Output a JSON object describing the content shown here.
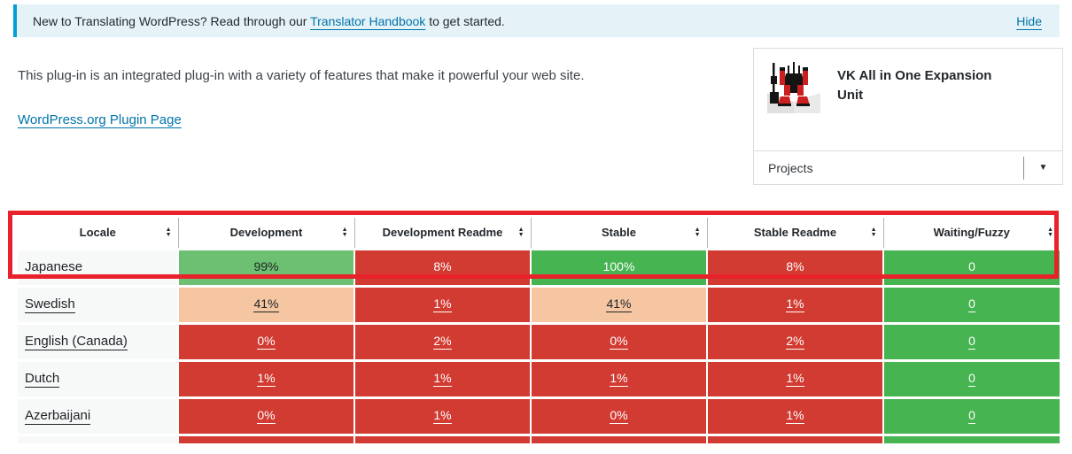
{
  "notice": {
    "text_before": "New to Translating WordPress? Read through our ",
    "handbook_link": "Translator Handbook",
    "text_after": " to get started.",
    "hide_label": "Hide",
    "bg_color": "#e5f3f9",
    "accent_color": "#00a0d2"
  },
  "intro": {
    "description": "This plug-in is an integrated plug-in with a variety of features that make it powerful your web site.",
    "plugin_page_link": "WordPress.org Plugin Page"
  },
  "project_card": {
    "title": "VK All in One Expansion Unit",
    "projects_label": "Projects",
    "logo_name": "vk-mecha-robot-logo"
  },
  "icons": {
    "sort_up": "▲",
    "sort_down": "▼",
    "caret_down": "▼"
  },
  "colors": {
    "link": "#0073aa",
    "annotation_red": "#e8222a",
    "cell_red": "#d13b32",
    "cell_green_full": "#46b450",
    "cell_green_high": "#6dc072",
    "cell_peach": "#f6c6a3",
    "locale_bg": "#f7f8f8",
    "dark_text": "#1d2327",
    "white_text": "#ffffff"
  },
  "table": {
    "columns": [
      "Locale",
      "Development",
      "Development Readme",
      "Stable",
      "Stable Readme",
      "Waiting/Fuzzy"
    ],
    "locale_bg": "#f7f8f8",
    "rows": [
      {
        "locale": "Japanese",
        "cells": [
          {
            "text": "99%",
            "bg": "#6dc072",
            "fg": "#1d2327"
          },
          {
            "text": "8%",
            "bg": "#d13b32",
            "fg": "#ffffff"
          },
          {
            "text": "100%",
            "bg": "#46b450",
            "fg": "#ffffff"
          },
          {
            "text": "8%",
            "bg": "#d13b32",
            "fg": "#ffffff"
          },
          {
            "text": "0",
            "bg": "#46b450",
            "fg": "#ffffff"
          }
        ]
      },
      {
        "locale": "Swedish",
        "cells": [
          {
            "text": "41%",
            "bg": "#f6c6a3",
            "fg": "#1d2327"
          },
          {
            "text": "1%",
            "bg": "#d13b32",
            "fg": "#ffffff"
          },
          {
            "text": "41%",
            "bg": "#f6c6a3",
            "fg": "#1d2327"
          },
          {
            "text": "1%",
            "bg": "#d13b32",
            "fg": "#ffffff"
          },
          {
            "text": "0",
            "bg": "#46b450",
            "fg": "#ffffff"
          }
        ]
      },
      {
        "locale": "English (Canada)",
        "cells": [
          {
            "text": "0%",
            "bg": "#d13b32",
            "fg": "#ffffff"
          },
          {
            "text": "2%",
            "bg": "#d13b32",
            "fg": "#ffffff"
          },
          {
            "text": "0%",
            "bg": "#d13b32",
            "fg": "#ffffff"
          },
          {
            "text": "2%",
            "bg": "#d13b32",
            "fg": "#ffffff"
          },
          {
            "text": "0",
            "bg": "#46b450",
            "fg": "#ffffff"
          }
        ]
      },
      {
        "locale": "Dutch",
        "cells": [
          {
            "text": "1%",
            "bg": "#d13b32",
            "fg": "#ffffff"
          },
          {
            "text": "1%",
            "bg": "#d13b32",
            "fg": "#ffffff"
          },
          {
            "text": "1%",
            "bg": "#d13b32",
            "fg": "#ffffff"
          },
          {
            "text": "1%",
            "bg": "#d13b32",
            "fg": "#ffffff"
          },
          {
            "text": "0",
            "bg": "#46b450",
            "fg": "#ffffff"
          }
        ]
      },
      {
        "locale": "Azerbaijani",
        "cells": [
          {
            "text": "0%",
            "bg": "#d13b32",
            "fg": "#ffffff"
          },
          {
            "text": "1%",
            "bg": "#d13b32",
            "fg": "#ffffff"
          },
          {
            "text": "0%",
            "bg": "#d13b32",
            "fg": "#ffffff"
          },
          {
            "text": "1%",
            "bg": "#d13b32",
            "fg": "#ffffff"
          },
          {
            "text": "0",
            "bg": "#46b450",
            "fg": "#ffffff"
          }
        ]
      }
    ],
    "partial_row_bgs": [
      "#f7f8f8",
      "#d13b32",
      "#d13b32",
      "#d13b32",
      "#d13b32",
      "#46b450"
    ]
  }
}
